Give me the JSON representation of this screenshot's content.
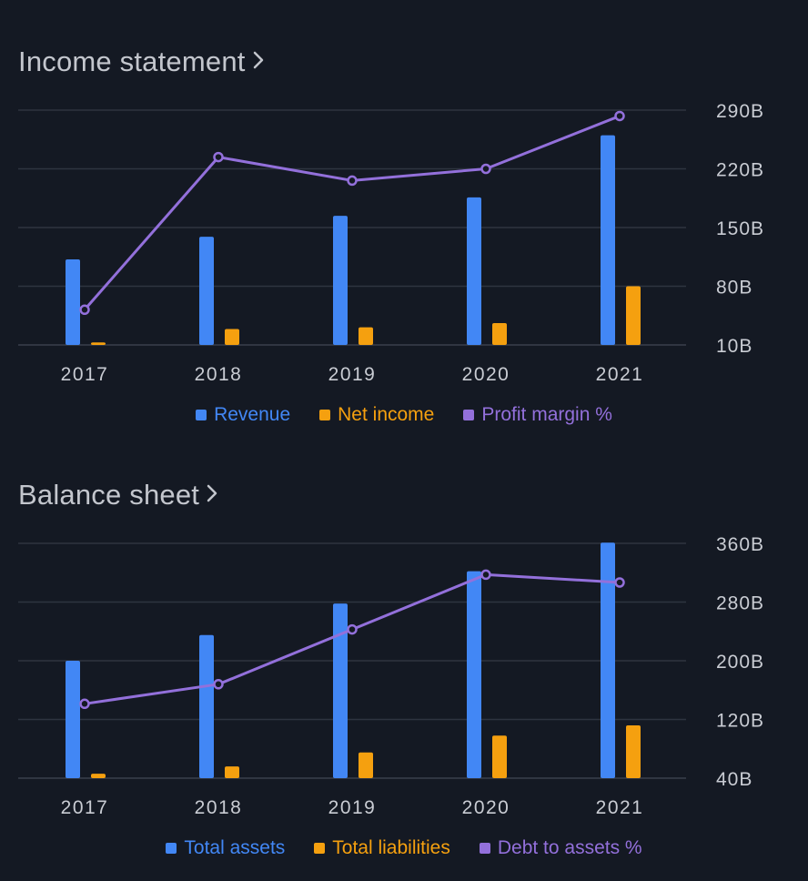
{
  "income": {
    "title": "Income statement",
    "legend": [
      "Revenue",
      "Net income",
      "Profit margin %"
    ]
  },
  "balance": {
    "title": "Balance sheet",
    "legend": [
      "Total assets",
      "Total liabilities",
      "Debt to assets %"
    ]
  },
  "colors": {
    "bar1": "#4287f5",
    "bar2": "#f5a00f",
    "line": "#9370db",
    "grid": "#2e3440",
    "text": "#c9ccd3"
  },
  "icons": {
    "title_chevron": "chevron-right-icon"
  },
  "chart_data": [
    {
      "type": "bar",
      "title": "Income statement",
      "categories": [
        "2017",
        "2018",
        "2019",
        "2020",
        "2021"
      ],
      "yticks": [
        "290B",
        "220B",
        "150B",
        "80B",
        "10B"
      ],
      "ylim": [
        10,
        290
      ],
      "y_axis_side": "right",
      "series": [
        {
          "name": "Revenue",
          "type": "bar",
          "values": [
            112,
            139,
            164,
            186,
            260
          ]
        },
        {
          "name": "Net income",
          "type": "bar",
          "values": [
            13,
            29,
            31,
            36,
            80
          ]
        },
        {
          "name": "Profit margin %",
          "type": "line",
          "values": [
            6,
            32,
            28,
            30,
            39
          ],
          "ylim": [
            0,
            40
          ]
        }
      ],
      "legend_position": "bottom"
    },
    {
      "type": "bar",
      "title": "Balance sheet",
      "categories": [
        "2017",
        "2018",
        "2019",
        "2020",
        "2021"
      ],
      "yticks": [
        "360B",
        "280B",
        "200B",
        "120B",
        "40B"
      ],
      "ylim": [
        40,
        360
      ],
      "y_axis_side": "right",
      "series": [
        {
          "name": "Total assets",
          "type": "bar",
          "values": [
            200,
            235,
            278,
            322,
            361
          ]
        },
        {
          "name": "Total liabilities",
          "type": "bar",
          "values": [
            46,
            56,
            75,
            98,
            112
          ]
        },
        {
          "name": "Debt to assets %",
          "type": "line",
          "values": [
            19,
            24,
            38,
            52,
            50
          ],
          "ylim": [
            0,
            60
          ]
        }
      ],
      "legend_position": "bottom"
    }
  ]
}
